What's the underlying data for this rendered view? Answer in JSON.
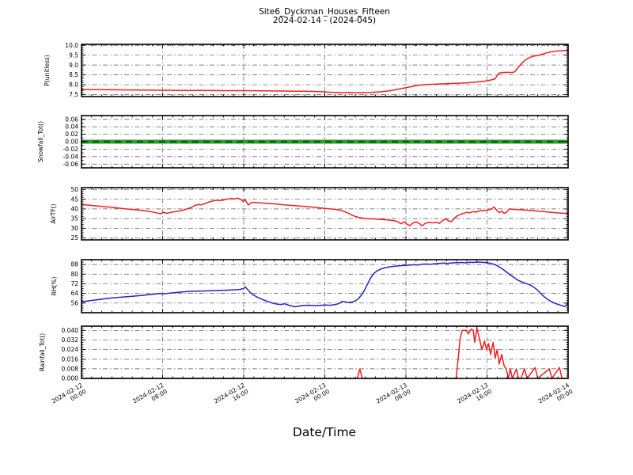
{
  "title": {
    "line1": "Site6_Dyckman_Houses_Fifteen",
    "line2": "2024-02-14 - (2024-045)"
  },
  "x_axis": {
    "label": "Date/Time",
    "range_hours": [
      0,
      48
    ],
    "major_tick_hours": [
      0,
      8,
      16,
      24,
      32,
      40,
      48
    ],
    "minor_step_hours": 1,
    "tick_labels": [
      {
        "date": "2024-02-12",
        "time": "00:00"
      },
      {
        "date": "2024-02-12",
        "time": "08:00"
      },
      {
        "date": "2024-02-12",
        "time": "16:00"
      },
      {
        "date": "2024-02-13",
        "time": "00:00"
      },
      {
        "date": "2024-02-13",
        "time": "08:00"
      },
      {
        "date": "2024-02-13",
        "time": "16:00"
      },
      {
        "date": "2024-02-14",
        "time": "00:00"
      }
    ]
  },
  "colors": {
    "red": "#f02020",
    "blue": "#2424c8",
    "green_band": "#2f9e2f",
    "green_dash": "#0e5c0e",
    "grid": "#555555",
    "spine": "#000000"
  },
  "chart_data": [
    {
      "id": "p",
      "type": "line",
      "ylabel": "P(unitless)",
      "color": "#f02020",
      "ylim": [
        7.4,
        10.05
      ],
      "ytick_values": [
        10.0,
        9.5,
        9.0,
        8.5,
        8.0,
        7.5
      ],
      "ytick_labels": [
        "10.0",
        "9.5",
        "9.0",
        "8.5",
        "8.0",
        "7.5"
      ],
      "yminor_step": 0.1,
      "grid": true,
      "points": [
        [
          0,
          7.76
        ],
        [
          2,
          7.75
        ],
        [
          4,
          7.74
        ],
        [
          6,
          7.73
        ],
        [
          8,
          7.72
        ],
        [
          10,
          7.71
        ],
        [
          12,
          7.71
        ],
        [
          14,
          7.7
        ],
        [
          16,
          7.7
        ],
        [
          18,
          7.69
        ],
        [
          20,
          7.68
        ],
        [
          22,
          7.67
        ],
        [
          23.5,
          7.65
        ],
        [
          24.5,
          7.62
        ],
        [
          25.5,
          7.6
        ],
        [
          26.5,
          7.61
        ],
        [
          27,
          7.59
        ],
        [
          27.5,
          7.6
        ],
        [
          28.5,
          7.61
        ],
        [
          29.5,
          7.64
        ],
        [
          30.5,
          7.7
        ],
        [
          31.5,
          7.8
        ],
        [
          32.5,
          7.9
        ],
        [
          33.2,
          7.97
        ],
        [
          34,
          8.01
        ],
        [
          35,
          8.03
        ],
        [
          36,
          8.05
        ],
        [
          37,
          8.07
        ],
        [
          38,
          8.1
        ],
        [
          39,
          8.14
        ],
        [
          40,
          8.2
        ],
        [
          40.5,
          8.26
        ],
        [
          40.8,
          8.3
        ],
        [
          41,
          8.48
        ],
        [
          41.2,
          8.6
        ],
        [
          41.6,
          8.62
        ],
        [
          42,
          8.63
        ],
        [
          42.4,
          8.62
        ],
        [
          42.7,
          8.65
        ],
        [
          43,
          8.82
        ],
        [
          43.3,
          9.02
        ],
        [
          43.6,
          9.18
        ],
        [
          43.9,
          9.3
        ],
        [
          44.3,
          9.4
        ],
        [
          44.7,
          9.46
        ],
        [
          45.1,
          9.49
        ],
        [
          45.5,
          9.56
        ],
        [
          45.9,
          9.62
        ],
        [
          46.3,
          9.67
        ],
        [
          46.7,
          9.7
        ],
        [
          47.1,
          9.72
        ],
        [
          47.5,
          9.73
        ],
        [
          48,
          9.74
        ]
      ]
    },
    {
      "id": "snowfall",
      "type": "line",
      "ylabel": "Snowfall_Tot()",
      "color": "#2f9e2f",
      "band": true,
      "ylim": [
        -0.07,
        0.07
      ],
      "ytick_values": [
        0.06,
        0.04,
        0.02,
        0.0,
        -0.02,
        -0.04,
        -0.06
      ],
      "ytick_labels": [
        "0.06",
        "0.04",
        "0.02",
        "0.00",
        "-0.02",
        "-0.04",
        "-0.06"
      ],
      "yminor_step": 0.01,
      "grid": true,
      "points": [
        [
          0,
          0
        ],
        [
          48,
          0
        ]
      ]
    },
    {
      "id": "airtf",
      "type": "line",
      "ylabel": "AirTF()",
      "color": "#f02020",
      "ylim": [
        24,
        51
      ],
      "ytick_values": [
        50,
        45,
        40,
        35,
        30,
        25
      ],
      "ytick_labels": [
        "50",
        "45",
        "40",
        "35",
        "30",
        "25"
      ],
      "yminor_step": 1,
      "grid": true,
      "points": [
        [
          0,
          42.3
        ],
        [
          1,
          41.8
        ],
        [
          2,
          41.3
        ],
        [
          3,
          40.8
        ],
        [
          4,
          40.2
        ],
        [
          5,
          39.7
        ],
        [
          6,
          39.2
        ],
        [
          6.8,
          38.6
        ],
        [
          7.4,
          38
        ],
        [
          7.8,
          37.5
        ],
        [
          8.1,
          38.3
        ],
        [
          8.4,
          37.7
        ],
        [
          8.8,
          38.2
        ],
        [
          9.3,
          38.6
        ],
        [
          9.8,
          39.1
        ],
        [
          10.3,
          39.8
        ],
        [
          10.8,
          40.7
        ],
        [
          11.2,
          41.8
        ],
        [
          11.5,
          42.3
        ],
        [
          11.8,
          42.1
        ],
        [
          12.2,
          42.8
        ],
        [
          12.6,
          43.6
        ],
        [
          13,
          44.2
        ],
        [
          13.4,
          44.5
        ],
        [
          13.7,
          44.3
        ],
        [
          14,
          44.6
        ],
        [
          14.4,
          45.1
        ],
        [
          14.8,
          45.4
        ],
        [
          15.1,
          45.2
        ],
        [
          15.4,
          45.6
        ],
        [
          15.7,
          44.9
        ],
        [
          15.95,
          43.8
        ],
        [
          16.15,
          44.7
        ],
        [
          16.45,
          42
        ],
        [
          16.7,
          43.1
        ],
        [
          17,
          43.4
        ],
        [
          17.5,
          43.2
        ],
        [
          18,
          43
        ],
        [
          19,
          42.6
        ],
        [
          20,
          42.1
        ],
        [
          21,
          41.7
        ],
        [
          22,
          41.3
        ],
        [
          23,
          40.8
        ],
        [
          24,
          40.3
        ],
        [
          25,
          39.8
        ],
        [
          25.6,
          39.2
        ],
        [
          26.1,
          38.3
        ],
        [
          26.6,
          37
        ],
        [
          27,
          36.1
        ],
        [
          27.4,
          35.5
        ],
        [
          27.8,
          35.2
        ],
        [
          28.4,
          34.9
        ],
        [
          29,
          34.7
        ],
        [
          29.6,
          34.5
        ],
        [
          30.2,
          34.3
        ],
        [
          30.8,
          34
        ],
        [
          31.2,
          33.4
        ],
        [
          31.5,
          32.3
        ],
        [
          31.8,
          33.3
        ],
        [
          32.1,
          32.1
        ],
        [
          32.4,
          31.4
        ],
        [
          32.7,
          32.7
        ],
        [
          33,
          33.4
        ],
        [
          33.3,
          32.5
        ],
        [
          33.6,
          31.3
        ],
        [
          33.9,
          32.5
        ],
        [
          34.2,
          33
        ],
        [
          34.6,
          32.8
        ],
        [
          35,
          33
        ],
        [
          35.3,
          32.6
        ],
        [
          35.6,
          33.9
        ],
        [
          35.9,
          34.9
        ],
        [
          36.2,
          33.9
        ],
        [
          36.5,
          33.4
        ],
        [
          36.8,
          35.3
        ],
        [
          37.1,
          36.5
        ],
        [
          37.4,
          37.2
        ],
        [
          37.7,
          37.8
        ],
        [
          38,
          38.2
        ],
        [
          38.3,
          38
        ],
        [
          38.6,
          38.6
        ],
        [
          38.9,
          38.3
        ],
        [
          39.2,
          38.9
        ],
        [
          39.5,
          39.3
        ],
        [
          39.8,
          39
        ],
        [
          40.1,
          39.5
        ],
        [
          40.4,
          39.8
        ],
        [
          40.7,
          41
        ],
        [
          40.95,
          39.3
        ],
        [
          41.2,
          38.1
        ],
        [
          41.45,
          38.8
        ],
        [
          41.7,
          37.7
        ],
        [
          41.95,
          38.4
        ],
        [
          42.2,
          40
        ],
        [
          42.6,
          39.8
        ],
        [
          43.1,
          39.6
        ],
        [
          43.6,
          39.5
        ],
        [
          44.1,
          39.3
        ],
        [
          44.6,
          39.1
        ],
        [
          45.1,
          38.8
        ],
        [
          45.6,
          38.6
        ],
        [
          46.1,
          38.3
        ],
        [
          46.6,
          38.1
        ],
        [
          47.1,
          37.9
        ],
        [
          47.6,
          37.7
        ],
        [
          48,
          37.6
        ]
      ]
    },
    {
      "id": "rh",
      "type": "line",
      "ylabel": "RH(%)",
      "color": "#2424c8",
      "ylim": [
        48,
        92
      ],
      "ytick_values": [
        88,
        80,
        72,
        64,
        56
      ],
      "ytick_labels": [
        "88",
        "80",
        "72",
        "64",
        "56"
      ],
      "yminor_step": 2,
      "grid": true,
      "points": [
        [
          0,
          57
        ],
        [
          1,
          58.2
        ],
        [
          2,
          59.2
        ],
        [
          3,
          60.2
        ],
        [
          4,
          61
        ],
        [
          5,
          61.6
        ],
        [
          6,
          62.4
        ],
        [
          7,
          63.3
        ],
        [
          7.7,
          63.9
        ],
        [
          8.1,
          63.7
        ],
        [
          8.5,
          64
        ],
        [
          9,
          64.5
        ],
        [
          9.6,
          65
        ],
        [
          10.2,
          65.4
        ],
        [
          11,
          65.8
        ],
        [
          12,
          66
        ],
        [
          13,
          66.3
        ],
        [
          14,
          66.6
        ],
        [
          15,
          67
        ],
        [
          15.6,
          67.3
        ],
        [
          16,
          68
        ],
        [
          16.15,
          69.5
        ],
        [
          16.35,
          67.5
        ],
        [
          16.6,
          65.2
        ],
        [
          16.9,
          63
        ],
        [
          17.2,
          61.5
        ],
        [
          17.5,
          60.3
        ],
        [
          17.8,
          59.2
        ],
        [
          18.1,
          58.2
        ],
        [
          18.5,
          57
        ],
        [
          18.9,
          55.8
        ],
        [
          19.3,
          55.1
        ],
        [
          19.7,
          54.8
        ],
        [
          20,
          55.4
        ],
        [
          20.3,
          54.6
        ],
        [
          20.7,
          53.6
        ],
        [
          21.1,
          52.9
        ],
        [
          21.5,
          53.6
        ],
        [
          22,
          54.1
        ],
        [
          22.5,
          54.2
        ],
        [
          23,
          53.9
        ],
        [
          23.5,
          54.1
        ],
        [
          24,
          54.4
        ],
        [
          24.5,
          54.2
        ],
        [
          25,
          54.7
        ],
        [
          25.4,
          55.6
        ],
        [
          25.7,
          57.4
        ],
        [
          26,
          56.9
        ],
        [
          26.3,
          56.4
        ],
        [
          26.7,
          56.9
        ],
        [
          27,
          57.8
        ],
        [
          27.3,
          59.5
        ],
        [
          27.6,
          62.5
        ],
        [
          27.9,
          66.5
        ],
        [
          28.2,
          71.5
        ],
        [
          28.5,
          76.5
        ],
        [
          28.8,
          80.2
        ],
        [
          29.1,
          82.4
        ],
        [
          29.5,
          84.2
        ],
        [
          29.9,
          85.2
        ],
        [
          30.4,
          86
        ],
        [
          31,
          86.7
        ],
        [
          31.6,
          87.1
        ],
        [
          32.2,
          87.4
        ],
        [
          32.8,
          87.8
        ],
        [
          33.2,
          87.6
        ],
        [
          33.6,
          88.2
        ],
        [
          34,
          88.4
        ],
        [
          34.4,
          88.1
        ],
        [
          34.8,
          88.6
        ],
        [
          35.2,
          88.9
        ],
        [
          35.7,
          89.2
        ],
        [
          36.1,
          88.9
        ],
        [
          36.5,
          89.3
        ],
        [
          37,
          89.5
        ],
        [
          37.5,
          89.7
        ],
        [
          37.9,
          89.4
        ],
        [
          38.3,
          89.9
        ],
        [
          38.7,
          89.7
        ],
        [
          39.1,
          90
        ],
        [
          39.6,
          89.8
        ],
        [
          40,
          89.5
        ],
        [
          40.4,
          88.9
        ],
        [
          40.8,
          87.8
        ],
        [
          41.1,
          86.5
        ],
        [
          41.4,
          85
        ],
        [
          41.7,
          83.2
        ],
        [
          42,
          81.2
        ],
        [
          42.3,
          79.2
        ],
        [
          42.7,
          77
        ],
        [
          43,
          75.2
        ],
        [
          43.4,
          73.6
        ],
        [
          43.8,
          72.4
        ],
        [
          44.2,
          71.2
        ],
        [
          44.5,
          69.8
        ],
        [
          44.8,
          68
        ],
        [
          45.1,
          65.8
        ],
        [
          45.4,
          63.2
        ],
        [
          45.7,
          60.8
        ],
        [
          46,
          59
        ],
        [
          46.3,
          57.5
        ],
        [
          46.6,
          56.2
        ],
        [
          46.9,
          55.2
        ],
        [
          47.2,
          54.4
        ],
        [
          47.45,
          53.7
        ],
        [
          47.65,
          53.2
        ],
        [
          47.8,
          54
        ],
        [
          47.9,
          55.3
        ],
        [
          48,
          56.8
        ]
      ]
    },
    {
      "id": "rainfall",
      "type": "line",
      "ylabel": "Rainfall_Tot()",
      "color": "#f02020",
      "ylim": [
        0,
        0.0435
      ],
      "ytick_values": [
        0.04,
        0.032,
        0.024,
        0.016,
        0.008,
        0.0
      ],
      "ytick_labels": [
        "0.040",
        "0.032",
        "0.024",
        "0.016",
        "0.008",
        "0.000"
      ],
      "yminor_step": 0.002,
      "grid": true,
      "points": [
        [
          0,
          0
        ],
        [
          27.2,
          0
        ],
        [
          27.45,
          0.008
        ],
        [
          27.7,
          0
        ],
        [
          36.95,
          0
        ],
        [
          37.15,
          0.016
        ],
        [
          37.35,
          0.033
        ],
        [
          37.55,
          0.04
        ],
        [
          37.95,
          0.04
        ],
        [
          38.15,
          0.037
        ],
        [
          38.45,
          0.041
        ],
        [
          38.65,
          0.04
        ],
        [
          38.8,
          0.03
        ],
        [
          39,
          0.042
        ],
        [
          39.25,
          0.033
        ],
        [
          39.5,
          0.024
        ],
        [
          39.75,
          0.031
        ],
        [
          39.95,
          0.024
        ],
        [
          40.15,
          0.029
        ],
        [
          40.35,
          0.02
        ],
        [
          40.6,
          0.03
        ],
        [
          40.8,
          0.017
        ],
        [
          41,
          0.024
        ],
        [
          41.2,
          0.012
        ],
        [
          41.45,
          0.02
        ],
        [
          41.7,
          0.01
        ],
        [
          41.9,
          0.008
        ],
        [
          42.1,
          0
        ],
        [
          42.3,
          0.008
        ],
        [
          42.5,
          0
        ],
        [
          42.9,
          0.008
        ],
        [
          43.1,
          0
        ],
        [
          43.35,
          0
        ],
        [
          43.7,
          0.008
        ],
        [
          43.95,
          0
        ],
        [
          44.75,
          0.009
        ],
        [
          45,
          0
        ],
        [
          46.15,
          0.008
        ],
        [
          46.4,
          0
        ],
        [
          47.15,
          0.009
        ],
        [
          47.4,
          0
        ],
        [
          48,
          0
        ]
      ]
    }
  ]
}
